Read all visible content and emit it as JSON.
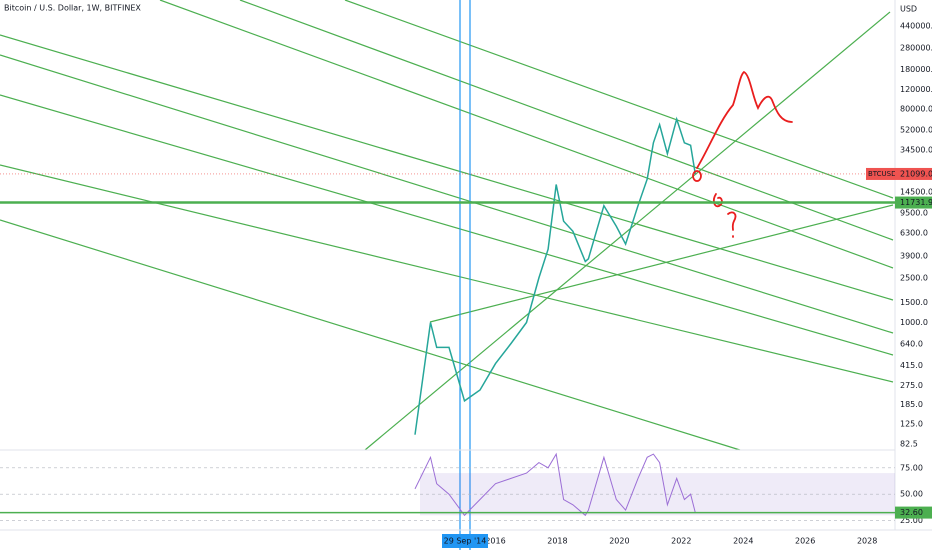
{
  "chart_data": {
    "type": "line",
    "title": "Bitcoin / U.S. Dollar, 1W, BITFINEX",
    "currency": "USD",
    "color": "#26a69a",
    "log_scale": true,
    "x": [
      2013.4,
      2013.9,
      2014.1,
      2014.5,
      2015.0,
      2015.5,
      2016.0,
      2016.5,
      2017.0,
      2017.4,
      2017.7,
      2017.96,
      2018.2,
      2018.5,
      2018.9,
      2019.0,
      2019.5,
      2019.9,
      2020.2,
      2020.6,
      2020.9,
      2021.1,
      2021.3,
      2021.55,
      2021.85,
      2022.1,
      2022.3,
      2022.45
    ],
    "values": [
      100,
      1000,
      600,
      600,
      200,
      250,
      430,
      650,
      1000,
      2500,
      4500,
      17000,
      8000,
      6500,
      3500,
      3700,
      11000,
      7200,
      5000,
      11000,
      19000,
      40000,
      58000,
      32000,
      65000,
      40000,
      38000,
      21099
    ],
    "xlim": [
      2000,
      2028.9
    ],
    "xticks": [
      2016,
      2018,
      2020,
      2022,
      2024,
      2026,
      2028
    ],
    "crosshair_label": "29 Sep '14",
    "ylim": [
      73,
      750000
    ],
    "yticks": [
      {
        "value": 82.5,
        "label": "82.5"
      },
      {
        "value": 125,
        "label": "125.0"
      },
      {
        "value": 185,
        "label": "185.0"
      },
      {
        "value": 275,
        "label": "275.0"
      },
      {
        "value": 415,
        "label": "415.0"
      },
      {
        "value": 640,
        "label": "640.0"
      },
      {
        "value": 1000,
        "label": "1000.0"
      },
      {
        "value": 1500,
        "label": "1500.0"
      },
      {
        "value": 2500,
        "label": "2500.0"
      },
      {
        "value": 3900,
        "label": "3900.0"
      },
      {
        "value": 6300,
        "label": "6300.0"
      },
      {
        "value": 9500,
        "label": "9500.0"
      },
      {
        "value": 14500,
        "label": "14500.0"
      },
      {
        "value": 34500,
        "label": "34500.0"
      },
      {
        "value": 52000,
        "label": "52000.0"
      },
      {
        "value": 80000,
        "label": "80000.0"
      },
      {
        "value": 120000,
        "label": "120000.0"
      },
      {
        "value": 180000,
        "label": "180000.0"
      },
      {
        "value": 280000,
        "label": "280000.0"
      },
      {
        "value": 440000,
        "label": "440000.0"
      }
    ],
    "last_price": {
      "name": "BTCUSD",
      "value": 21099,
      "label": "21099.0"
    },
    "level": {
      "value": 11731.9
    },
    "rsi": {
      "color": "#9c6fd6",
      "ylim": [
        18,
        90
      ],
      "yticks": [
        {
          "value": 75,
          "label": "75.00"
        },
        {
          "value": 50,
          "label": "50.00"
        },
        {
          "value": 25,
          "label": "25.00"
        }
      ],
      "band": [
        30,
        70
      ],
      "last": {
        "value": 32.6,
        "label": "32.60"
      },
      "values": [
        55,
        85,
        60,
        50,
        30,
        45,
        60,
        65,
        70,
        80,
        75,
        88,
        45,
        40,
        30,
        35,
        85,
        45,
        35,
        65,
        85,
        88,
        80,
        40,
        65,
        45,
        50,
        32.6
      ]
    }
  }
}
